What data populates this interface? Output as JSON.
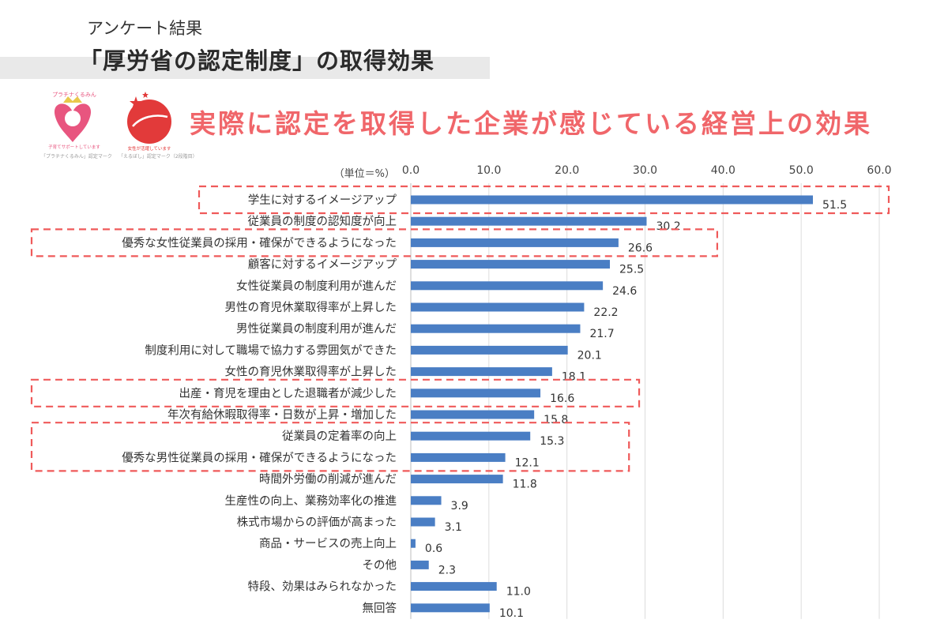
{
  "header": {
    "survey_label": "アンケート結果",
    "title": "「厚労省の認定制度」の取得効果",
    "headline": "実際に認定を取得した企業が感じている経営上の効果",
    "headline_color": "#f0666a"
  },
  "logos": [
    {
      "name": "platinum-kurumin-mark",
      "text_top": "プラチナくるみん",
      "text_mid": "子育てサポートしています",
      "caption": "「プラチナくるみん」認定マーク",
      "color": "#e8557f"
    },
    {
      "name": "eruboshi-mark",
      "text_mid": "女性が活躍しています",
      "caption": "「えるぼし」認定マーク（2段階目）",
      "color": "#e23a3a"
    }
  ],
  "colors": {
    "bar": "#4a7ec4",
    "highlight": "#ef5a5a",
    "grid": "#dcdcdc"
  },
  "chart_data": {
    "type": "bar",
    "orientation": "horizontal",
    "unit_label": "（単位＝%）",
    "xlim": [
      0,
      60
    ],
    "ticks": [
      "0.0",
      "10.0",
      "20.0",
      "30.0",
      "40.0",
      "50.0",
      "60.0"
    ],
    "grid": true,
    "categories": [
      "学生に対するイメージアップ",
      "従業員の制度の認知度が向上",
      "優秀な女性従業員の採用・確保ができるようになった",
      "顧客に対するイメージアップ",
      "女性従業員の制度利用が進んだ",
      "男性の育児休業取得率が上昇した",
      "男性従業員の制度利用が進んだ",
      "制度利用に対して職場で協力する雰囲気ができた",
      "女性の育児休業取得率が上昇した",
      "出産・育児を理由とした退職者が減少した",
      "年次有給休暇取得率・日数が上昇・増加した",
      "従業員の定着率の向上",
      "優秀な男性従業員の採用・確保ができるようになった",
      "時間外労働の削減が進んだ",
      "生産性の向上、業務効率化の推進",
      "株式市場からの評価が高まった",
      "商品・サービスの売上向上",
      "その他",
      "特段、効果はみられなかった",
      "無回答"
    ],
    "values": [
      51.5,
      30.2,
      26.6,
      25.5,
      24.6,
      22.2,
      21.7,
      20.1,
      18.1,
      16.6,
      15.8,
      15.3,
      12.1,
      11.8,
      3.9,
      3.1,
      0.6,
      2.3,
      11.0,
      10.1
    ],
    "value_labels": [
      "51.5",
      "30.2",
      "26.6",
      "25.5",
      "24.6",
      "22.2",
      "21.7",
      "20.1",
      "18.1",
      "16.6",
      "15.8",
      "15.3",
      "12.1",
      "11.8",
      "3.9",
      "3.1",
      "0.6",
      "2.3",
      "11.0",
      "10.1"
    ],
    "highlights": [
      {
        "from": 0,
        "to": 0,
        "extends_past_value": true
      },
      {
        "from": 2,
        "to": 2
      },
      {
        "from": 9,
        "to": 9
      },
      {
        "from": 11,
        "to": 12
      }
    ]
  }
}
